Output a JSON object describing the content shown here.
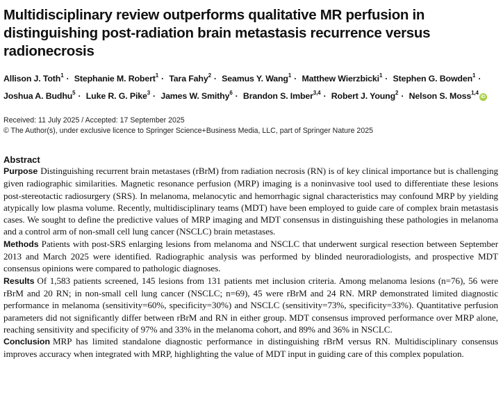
{
  "title": "Multidisciplinary review outperforms qualitative MR perfusion in distinguishing post-radiation brain metastasis recurrence versus radionecrosis",
  "authors": [
    {
      "name": "Allison J. Toth",
      "aff": "1"
    },
    {
      "name": "Stephanie M. Robert",
      "aff": "1"
    },
    {
      "name": "Tara Fahy",
      "aff": "2"
    },
    {
      "name": "Seamus Y. Wang",
      "aff": "1"
    },
    {
      "name": "Matthew Wierzbicki",
      "aff": "1"
    },
    {
      "name": "Stephen G. Bowden",
      "aff": "1"
    },
    {
      "name": "Joshua A. Budhu",
      "aff": "5"
    },
    {
      "name": "Luke R. G. Pike",
      "aff": "3"
    },
    {
      "name": "James W. Smithy",
      "aff": "6"
    },
    {
      "name": "Brandon S. Imber",
      "aff": "3,4"
    },
    {
      "name": "Robert J. Young",
      "aff": "2"
    },
    {
      "name": "Nelson S. Moss",
      "aff": "1,4"
    }
  ],
  "orcid_icon_text": "iD",
  "dates": {
    "received_accepted": "Received: 11 July 2025 / Accepted: 17 September 2025",
    "copyright": "© The Author(s), under exclusive licence to Springer Science+Business Media, LLC, part of Springer Nature 2025"
  },
  "abstract": {
    "heading": "Abstract",
    "purpose_label": "Purpose",
    "purpose_text": "Distinguishing recurrent brain metastases (rBrM) from radiation necrosis (RN) is of key clinical importance but is challenging given radiographic similarities. Magnetic resonance perfusion (MRP) imaging is a noninvasive tool used to differentiate these lesions post-stereotactic radiosurgery (SRS). In melanoma, melanocytic and hemorrhagic signal characteristics may confound MRP by yielding atypically low plasma volume. Recently, multidisciplinary teams (MDT) have been employed to guide care of complex brain metastasis cases. We sought to define the predictive values of MRP imaging and MDT consensus in distinguishing these pathologies in melanoma and a control arm of non-small cell lung cancer (NSCLC) brain metastases.",
    "methods_label": "Methods",
    "methods_text": "Patients with post-SRS enlarging lesions from melanoma and NSCLC that underwent surgical resection between September 2013 and March 2025 were identified. Radiographic analysis was performed by blinded neuroradiologists, and prospective MDT consensus opinions were compared to pathologic diagnoses.",
    "results_label": "Results",
    "results_text": "Of 1,583 patients screened, 145 lesions from 131 patients met inclusion criteria. Among melanoma lesions (n=76), 56 were rBrM and 20 RN; in non-small cell lung cancer (NSCLC; n=69), 45 were rBrM and 24 RN. MRP demonstrated limited diagnostic performance in melanoma (sensitivity=60%, specificity=30%) and NSCLC (sensitivity=73%, specificity=33%). Quantitative perfusion parameters did not significantly differ between rBrM and RN in either group. MDT consensus improved performance over MRP alone, reaching sensitivity and specificity of 97% and 33% in the melanoma cohort, and 89% and 36% in NSCLC.",
    "conclusion_label": "Conclusion",
    "conclusion_text": "MRP has limited standalone diagnostic performance in distinguishing rBrM versus RN. Multidisciplinary consensus improves accuracy when integrated with MRP, highlighting the value of MDT input in guiding care of this complex population."
  }
}
